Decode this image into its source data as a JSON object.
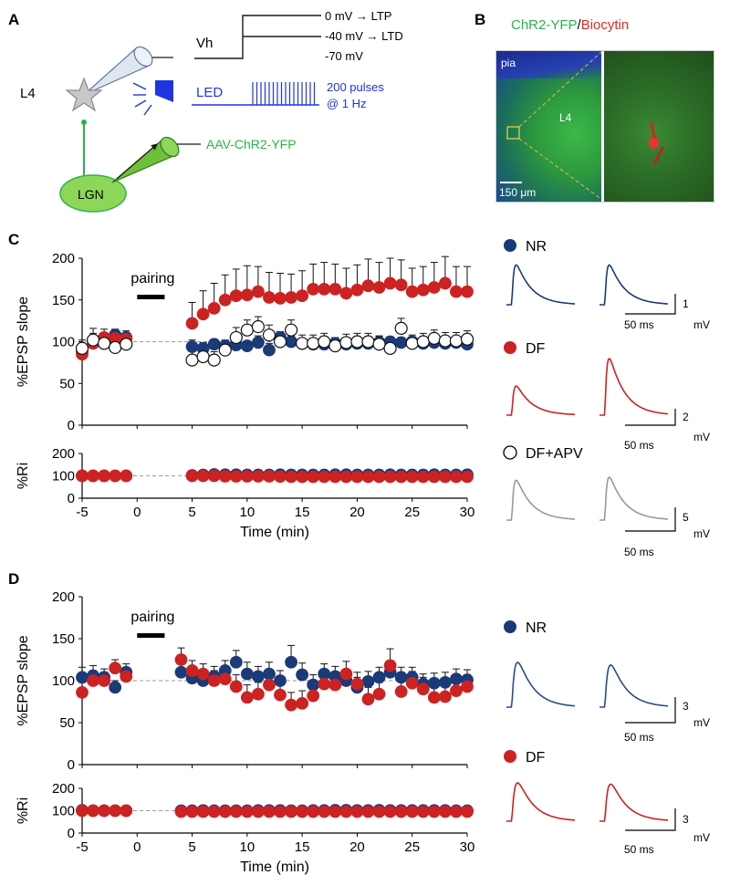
{
  "panel_labels": {
    "a": "A",
    "b": "B",
    "c": "C",
    "d": "D"
  },
  "panel_a": {
    "vh_label": "Vh",
    "vh_ltp": "0 mV → LTP",
    "vh_ltd": "-40 mV → LTD",
    "vh_rest": "-70 mV",
    "l4_label": "L4",
    "led_label": "LED",
    "pulses_line1": "200 pulses",
    "pulses_line2": "@ 1 Hz",
    "lgn_label": "LGN",
    "virus_label": "AAV-ChR2-YFP",
    "colors": {
      "blue": "#1f35e0",
      "green": "#29b34a",
      "lgn_fill": "#8ed657"
    }
  },
  "panel_b": {
    "title_part1": "ChR2-YFP",
    "title_sep": "/",
    "title_part2": "Biocytin",
    "pia_label": "pia",
    "l4_label": "L4",
    "scalebar_label": "150 μm"
  },
  "traces": {
    "scale_unit_mv": "mV",
    "scale_time": "50 ms",
    "c": [
      {
        "legend": "NR",
        "marker": "filled-navy",
        "color": "#1a3a78",
        "scale_mv": "1"
      },
      {
        "legend": "DF",
        "marker": "filled-red",
        "color": "#cc2222",
        "scale_mv": "2"
      },
      {
        "legend": "DF+APV",
        "marker": "open",
        "color": "#999999",
        "scale_mv": "5"
      }
    ],
    "d": [
      {
        "legend": "NR",
        "marker": "filled-navy",
        "color": "#2a4a8a",
        "scale_mv": "3"
      },
      {
        "legend": "DF",
        "marker": "filled-red",
        "color": "#cc2222",
        "scale_mv": "3"
      }
    ]
  },
  "chart_data": [
    {
      "id": "C-epsp",
      "type": "scatter",
      "ylabel": "%EPSP slope",
      "xlabel": "",
      "xlim": [
        -5,
        30
      ],
      "ylim": [
        0,
        200
      ],
      "x_ticks": [
        -5,
        0,
        5,
        10,
        15,
        20,
        25,
        30
      ],
      "y_ticks": [
        0,
        50,
        100,
        150,
        200
      ],
      "baseline": 100,
      "annotation": "pairing",
      "pairing_interval": [
        0,
        2.5
      ],
      "series": [
        {
          "name": "NR",
          "color": "#1a3a78",
          "filled": true,
          "x": [
            -5,
            -4,
            -3,
            -2,
            -1,
            5,
            6,
            7,
            8,
            9,
            10,
            11,
            12,
            13,
            14,
            15,
            16,
            17,
            18,
            19,
            20,
            21,
            22,
            23,
            24,
            25,
            26,
            27,
            28,
            29,
            30
          ],
          "y": [
            88,
            100,
            103,
            108,
            105,
            94,
            92,
            97,
            95,
            96,
            95,
            99,
            90,
            105,
            100,
            98,
            97,
            97,
            98,
            97,
            98,
            98,
            99,
            100,
            99,
            100,
            98,
            99,
            98,
            99,
            97
          ],
          "err": [
            5,
            8,
            6,
            7,
            6,
            8,
            7,
            6,
            6,
            7,
            6,
            8,
            8,
            7,
            7,
            6,
            6,
            6,
            6,
            7,
            6,
            6,
            7,
            6,
            6,
            6,
            6,
            6,
            6,
            6,
            6
          ]
        },
        {
          "name": "DF",
          "color": "#cc2222",
          "filled": true,
          "x": [
            -5,
            -4,
            -3,
            -2,
            -1,
            5,
            6,
            7,
            8,
            9,
            10,
            11,
            12,
            13,
            14,
            15,
            16,
            17,
            18,
            19,
            20,
            21,
            22,
            23,
            24,
            25,
            26,
            27,
            28,
            29,
            30
          ],
          "y": [
            85,
            98,
            105,
            104,
            103,
            122,
            133,
            140,
            150,
            155,
            156,
            160,
            153,
            152,
            153,
            155,
            163,
            163,
            163,
            158,
            162,
            167,
            165,
            170,
            168,
            160,
            162,
            165,
            170,
            160,
            160
          ],
          "err": [
            8,
            12,
            10,
            10,
            10,
            25,
            28,
            30,
            30,
            32,
            35,
            30,
            30,
            30,
            28,
            30,
            30,
            32,
            30,
            30,
            30,
            32,
            30,
            30,
            30,
            28,
            28,
            30,
            32,
            30,
            30
          ]
        },
        {
          "name": "DF+APV",
          "color": "#222222",
          "filled": false,
          "x": [
            -5,
            -4,
            -3,
            -2,
            -1,
            5,
            6,
            7,
            8,
            9,
            10,
            11,
            12,
            13,
            14,
            15,
            16,
            17,
            18,
            19,
            20,
            21,
            22,
            23,
            24,
            25,
            26,
            27,
            28,
            29,
            30
          ],
          "y": [
            92,
            102,
            98,
            93,
            97,
            78,
            82,
            78,
            90,
            105,
            114,
            118,
            108,
            100,
            114,
            98,
            98,
            100,
            95,
            99,
            100,
            100,
            97,
            92,
            116,
            98,
            100,
            104,
            101,
            101,
            103
          ],
          "err": [
            10,
            14,
            12,
            12,
            12,
            12,
            10,
            10,
            12,
            12,
            12,
            12,
            12,
            12,
            12,
            10,
            10,
            10,
            10,
            10,
            10,
            10,
            10,
            10,
            12,
            10,
            10,
            10,
            10,
            10,
            10
          ]
        }
      ]
    },
    {
      "id": "C-ri",
      "type": "scatter",
      "ylabel": "%Ri",
      "xlabel": "Time (min)",
      "xlim": [
        -5,
        30
      ],
      "ylim": [
        0,
        200
      ],
      "x_ticks": [
        -5,
        0,
        5,
        10,
        15,
        20,
        25,
        30
      ],
      "y_ticks": [
        0,
        100,
        200
      ],
      "baseline": 100,
      "series": [
        {
          "name": "NR",
          "color": "#1a3a78",
          "filled": true,
          "x": [
            -5,
            -4,
            -3,
            -2,
            -1,
            5,
            6,
            7,
            8,
            9,
            10,
            11,
            12,
            13,
            14,
            15,
            16,
            17,
            18,
            19,
            20,
            21,
            22,
            23,
            24,
            25,
            26,
            27,
            28,
            29,
            30
          ],
          "y": [
            100,
            100,
            100,
            100,
            100,
            102,
            104,
            106,
            105,
            105,
            104,
            104,
            104,
            105,
            104,
            104,
            104,
            104,
            105,
            105,
            104,
            104,
            104,
            105,
            104,
            104,
            104,
            105,
            104,
            104,
            105
          ]
        },
        {
          "name": "DF",
          "color": "#cc2222",
          "filled": true,
          "x": [
            -5,
            -4,
            -3,
            -2,
            -1,
            5,
            6,
            7,
            8,
            9,
            10,
            11,
            12,
            13,
            14,
            15,
            16,
            17,
            18,
            19,
            20,
            21,
            22,
            23,
            24,
            25,
            26,
            27,
            28,
            29,
            30
          ],
          "y": [
            100,
            100,
            100,
            100,
            100,
            100,
            100,
            100,
            98,
            98,
            98,
            98,
            98,
            97,
            96,
            96,
            96,
            96,
            96,
            96,
            96,
            96,
            96,
            96,
            96,
            96,
            96,
            96,
            96,
            96,
            96
          ]
        }
      ]
    },
    {
      "id": "D-epsp",
      "type": "scatter",
      "ylabel": "%EPSP slope",
      "xlabel": "",
      "xlim": [
        -5,
        30
      ],
      "ylim": [
        0,
        200
      ],
      "x_ticks": [
        -5,
        0,
        5,
        10,
        15,
        20,
        25,
        30
      ],
      "y_ticks": [
        0,
        50,
        100,
        150,
        200
      ],
      "baseline": 100,
      "annotation": "pairing",
      "pairing_interval": [
        0,
        2.5
      ],
      "series": [
        {
          "name": "NR",
          "color": "#1a3a78",
          "filled": true,
          "x": [
            -5,
            -4,
            -3,
            -2,
            -1,
            4,
            5,
            6,
            7,
            8,
            9,
            10,
            11,
            12,
            13,
            14,
            15,
            16,
            17,
            18,
            19,
            20,
            21,
            22,
            23,
            24,
            25,
            26,
            27,
            28,
            29,
            30
          ],
          "y": [
            104,
            106,
            104,
            92,
            110,
            110,
            103,
            100,
            105,
            112,
            122,
            108,
            105,
            108,
            100,
            122,
            107,
            95,
            108,
            105,
            100,
            92,
            99,
            104,
            110,
            104,
            104,
            96,
            97,
            98,
            102,
            101
          ],
          "err": [
            12,
            12,
            10,
            8,
            10,
            15,
            10,
            10,
            12,
            12,
            14,
            14,
            12,
            14,
            12,
            20,
            14,
            12,
            12,
            12,
            12,
            12,
            12,
            12,
            14,
            12,
            12,
            12,
            12,
            12,
            12,
            12
          ]
        },
        {
          "name": "DF",
          "color": "#cc2222",
          "filled": true,
          "x": [
            -5,
            -4,
            -3,
            -2,
            -1,
            4,
            5,
            6,
            7,
            8,
            9,
            10,
            11,
            12,
            13,
            14,
            15,
            16,
            17,
            18,
            19,
            20,
            21,
            22,
            23,
            24,
            25,
            26,
            27,
            28,
            29,
            30
          ],
          "y": [
            86,
            100,
            100,
            115,
            105,
            125,
            112,
            108,
            100,
            102,
            93,
            80,
            84,
            95,
            83,
            71,
            73,
            82,
            96,
            95,
            108,
            96,
            78,
            84,
            118,
            87,
            97,
            90,
            80,
            81,
            88,
            93
          ],
          "err": [
            12,
            12,
            10,
            10,
            10,
            14,
            12,
            12,
            12,
            12,
            14,
            15,
            14,
            14,
            14,
            15,
            15,
            14,
            14,
            14,
            15,
            14,
            14,
            14,
            20,
            14,
            14,
            14,
            15,
            15,
            14,
            14
          ]
        }
      ]
    },
    {
      "id": "D-ri",
      "type": "scatter",
      "ylabel": "%Ri",
      "xlabel": "Time (min)",
      "xlim": [
        -5,
        30
      ],
      "ylim": [
        0,
        200
      ],
      "x_ticks": [
        -5,
        0,
        5,
        10,
        15,
        20,
        25,
        30
      ],
      "y_ticks": [
        0,
        100,
        200
      ],
      "baseline": 100,
      "series": [
        {
          "name": "NR",
          "color": "#1a3a78",
          "filled": true,
          "x": [
            -5,
            -4,
            -3,
            -2,
            -1,
            4,
            5,
            6,
            7,
            8,
            9,
            10,
            11,
            12,
            13,
            14,
            15,
            16,
            17,
            18,
            19,
            20,
            21,
            22,
            23,
            24,
            25,
            26,
            27,
            28,
            29,
            30
          ],
          "y": [
            102,
            100,
            100,
            100,
            100,
            100,
            100,
            101,
            100,
            100,
            100,
            100,
            101,
            101,
            101,
            100,
            100,
            101,
            101,
            102,
            102,
            101,
            101,
            102,
            101,
            101,
            101,
            101,
            101,
            101,
            100,
            100
          ]
        },
        {
          "name": "DF",
          "color": "#cc2222",
          "filled": true,
          "x": [
            -5,
            -4,
            -3,
            -2,
            -1,
            4,
            5,
            6,
            7,
            8,
            9,
            10,
            11,
            12,
            13,
            14,
            15,
            16,
            17,
            18,
            19,
            20,
            21,
            22,
            23,
            24,
            25,
            26,
            27,
            28,
            29,
            30
          ],
          "y": [
            100,
            100,
            100,
            100,
            100,
            96,
            96,
            96,
            96,
            96,
            96,
            96,
            96,
            96,
            96,
            96,
            96,
            96,
            96,
            96,
            96,
            96,
            96,
            96,
            96,
            96,
            96,
            96,
            96,
            96,
            96,
            96
          ]
        }
      ]
    }
  ]
}
